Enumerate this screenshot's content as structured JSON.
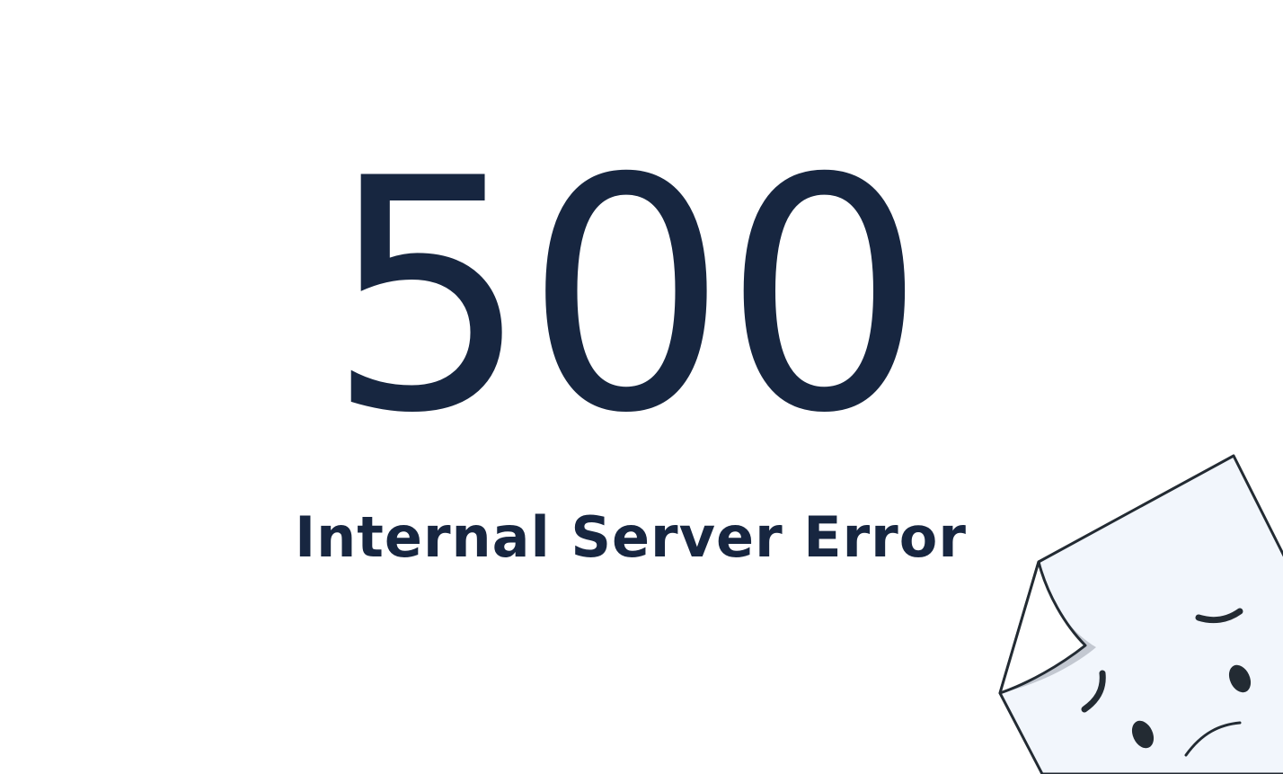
{
  "error": {
    "code": "500",
    "message": "Internal Server Error"
  },
  "illustration": {
    "icon": "sad-page-icon",
    "paper_color": "#f2f6fc",
    "stroke_color": "#232b33",
    "fold_shadow_color": "#c3c8d1"
  },
  "colors": {
    "background": "#ffffff",
    "text": "#172640"
  }
}
